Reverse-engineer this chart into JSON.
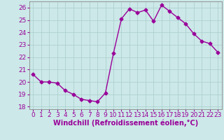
{
  "x": [
    0,
    1,
    2,
    3,
    4,
    5,
    6,
    7,
    8,
    9,
    10,
    11,
    12,
    13,
    14,
    15,
    16,
    17,
    18,
    19,
    20,
    21,
    22,
    23
  ],
  "y": [
    20.6,
    20.0,
    20.0,
    19.9,
    19.3,
    19.0,
    18.6,
    18.5,
    18.4,
    19.1,
    22.3,
    25.1,
    25.9,
    25.6,
    25.8,
    24.9,
    26.2,
    25.7,
    25.2,
    24.7,
    23.9,
    23.3,
    23.1,
    22.4
  ],
  "line_color": "#990099",
  "marker": "D",
  "markersize": 2.5,
  "linewidth": 1.0,
  "xlabel": "Windchill (Refroidissement éolien,°C)",
  "ylabel": "",
  "title": "",
  "xlim": [
    -0.5,
    23.5
  ],
  "ylim": [
    17.8,
    26.5
  ],
  "yticks": [
    18,
    19,
    20,
    21,
    22,
    23,
    24,
    25,
    26
  ],
  "xticks": [
    0,
    1,
    2,
    3,
    4,
    5,
    6,
    7,
    8,
    9,
    10,
    11,
    12,
    13,
    14,
    15,
    16,
    17,
    18,
    19,
    20,
    21,
    22,
    23
  ],
  "bg_color": "#cce8e8",
  "grid_color": "#aacccc",
  "xlabel_color": "#990099",
  "xlabel_fontsize": 7,
  "tick_fontsize": 6.5,
  "tick_color": "#990099",
  "axis_color": "#888888"
}
